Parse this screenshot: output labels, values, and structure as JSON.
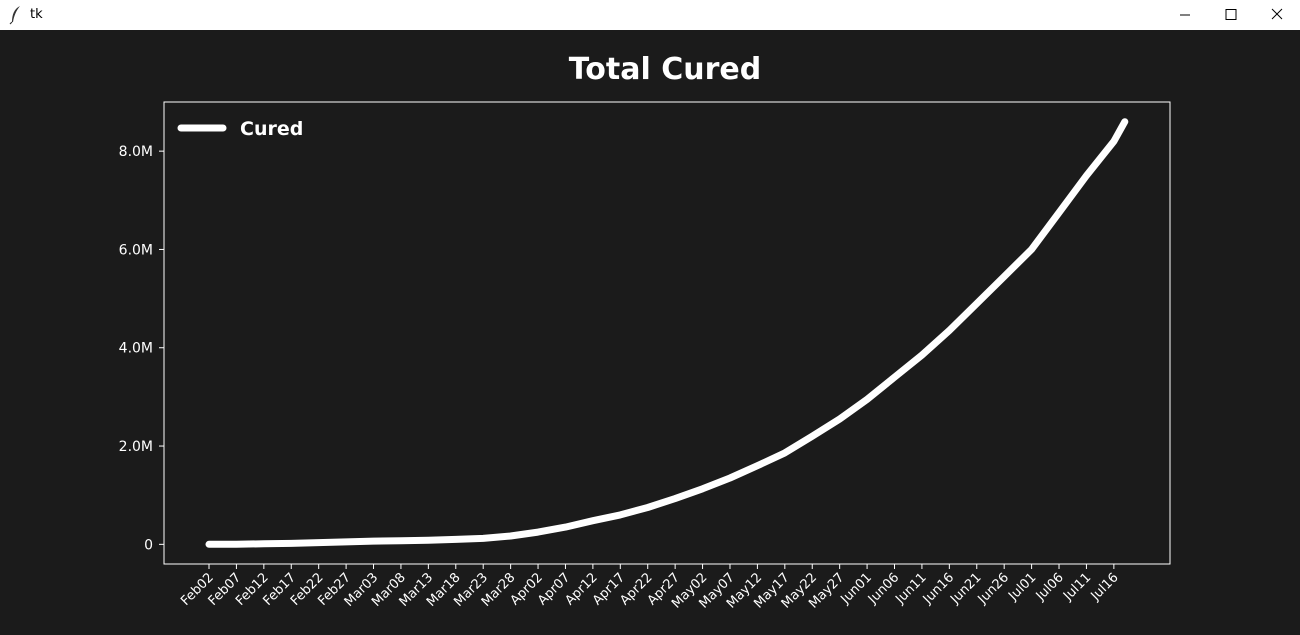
{
  "window": {
    "title": "tk",
    "icon": "feather-icon",
    "controls": [
      "minimize-icon",
      "maximize-icon",
      "close-icon"
    ]
  },
  "colors": {
    "background": "#1b1b1b",
    "foreground": "#ffffff",
    "line": "#ffffff"
  },
  "chart_data": {
    "type": "line",
    "title": "Total Cured",
    "xlabel": "",
    "ylabel": "",
    "legend": {
      "placement": "top-left",
      "entries": [
        "Cured"
      ]
    },
    "grid": false,
    "ylim": [
      -400000,
      9000000
    ],
    "yticks": [
      0,
      2000000,
      4000000,
      6000000,
      8000000
    ],
    "ytick_labels": [
      "0",
      "2.0M",
      "4.0M",
      "6.0M",
      "8.0M"
    ],
    "xtick_labels": [
      "Feb02",
      "Feb07",
      "Feb12",
      "Feb17",
      "Feb22",
      "Feb27",
      "Mar03",
      "Mar08",
      "Mar13",
      "Mar18",
      "Mar23",
      "Mar28",
      "Apr02",
      "Apr07",
      "Apr12",
      "Apr17",
      "Apr22",
      "Apr27",
      "May02",
      "May07",
      "May12",
      "May17",
      "May22",
      "May27",
      "Jun01",
      "Jun06",
      "Jun11",
      "Jun16",
      "Jun21",
      "Jun26",
      "Jul01",
      "Jul06",
      "Jul11",
      "Jul16"
    ],
    "series": [
      {
        "name": "Cured",
        "x": [
          "Feb02",
          "Feb07",
          "Feb12",
          "Feb17",
          "Feb22",
          "Feb27",
          "Mar03",
          "Mar08",
          "Mar13",
          "Mar18",
          "Mar23",
          "Mar28",
          "Apr02",
          "Apr07",
          "Apr12",
          "Apr17",
          "Apr22",
          "Apr27",
          "May02",
          "May07",
          "May12",
          "May17",
          "May22",
          "May27",
          "Jun01",
          "Jun06",
          "Jun11",
          "Jun16",
          "Jun21",
          "Jun26",
          "Jul01",
          "Jul06",
          "Jul11",
          "Jul16",
          "Jul18"
        ],
        "values": [
          0,
          3000,
          10000,
          20000,
          35000,
          50000,
          65000,
          75000,
          85000,
          100000,
          120000,
          170000,
          250000,
          350000,
          480000,
          600000,
          750000,
          930000,
          1130000,
          1350000,
          1600000,
          1860000,
          2200000,
          2550000,
          2950000,
          3400000,
          3850000,
          4350000,
          4900000,
          5450000,
          6000000,
          6750000,
          7500000,
          8200000,
          8600000
        ]
      }
    ]
  }
}
